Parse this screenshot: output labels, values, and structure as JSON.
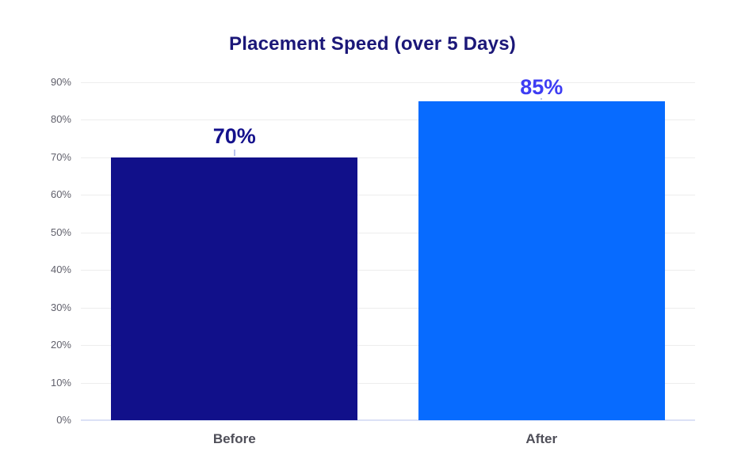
{
  "chart_data": {
    "type": "bar",
    "title": "Placement Speed (over 5 Days)",
    "categories": [
      "Before",
      "After"
    ],
    "values": [
      70,
      85
    ],
    "data_labels": [
      "70%",
      "85%"
    ],
    "unit": "%",
    "ylim": [
      0,
      90
    ],
    "ytick_values": [
      0,
      10,
      20,
      30,
      40,
      50,
      60,
      70,
      80,
      90
    ],
    "yticks": [
      "0%",
      "10%",
      "20%",
      "30%",
      "40%",
      "50%",
      "60%",
      "70%",
      "80%",
      "90%"
    ],
    "grid": "horizontal",
    "legend": "none",
    "colors": {
      "background": "#ffffff",
      "title": "#1b1778",
      "bars": [
        "#11108a",
        "#076bff"
      ],
      "value_labels": [
        "#14118c",
        "#3e3df3"
      ],
      "axis_text": "#61616c",
      "category_text": "#4f4f59",
      "gridline": "#ededed",
      "baseline": "#dbe1f6",
      "leader_tick": "#b9c3ee"
    }
  }
}
